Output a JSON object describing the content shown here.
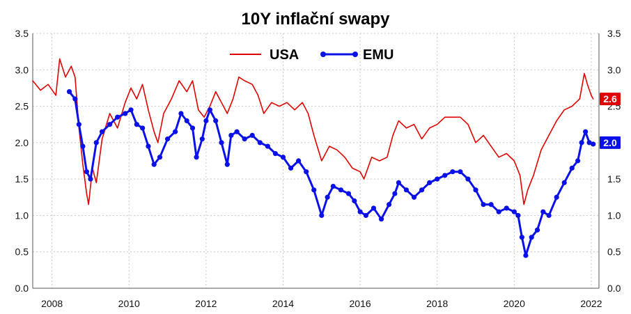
{
  "chart_data": {
    "type": "line",
    "title": "10Y inflační swapy",
    "xlabel": "",
    "ylabel": "",
    "ylim": [
      0,
      3.5
    ],
    "yticks": [
      "0.0",
      "0.5",
      "1.0",
      "1.5",
      "2.0",
      "2.5",
      "3.0",
      "3.5"
    ],
    "xlim": [
      2007.5,
      2022.2
    ],
    "xticks": [
      "2008",
      "2010",
      "2012",
      "2014",
      "2016",
      "2018",
      "2020",
      "2022"
    ],
    "grid": true,
    "legend": "top-center",
    "series": [
      {
        "name": "USA",
        "color": "#e00000",
        "last_value_label": "2.6",
        "points": [
          [
            2007.5,
            2.85
          ],
          [
            2007.7,
            2.72
          ],
          [
            2007.9,
            2.8
          ],
          [
            2008.1,
            2.65
          ],
          [
            2008.2,
            3.15
          ],
          [
            2008.35,
            2.9
          ],
          [
            2008.5,
            3.05
          ],
          [
            2008.6,
            2.9
          ],
          [
            2008.7,
            2.2
          ],
          [
            2008.8,
            1.7
          ],
          [
            2008.9,
            1.3
          ],
          [
            2008.95,
            1.15
          ],
          [
            2009.05,
            1.65
          ],
          [
            2009.15,
            1.45
          ],
          [
            2009.3,
            2.05
          ],
          [
            2009.5,
            2.4
          ],
          [
            2009.7,
            2.2
          ],
          [
            2009.9,
            2.55
          ],
          [
            2010.05,
            2.75
          ],
          [
            2010.2,
            2.6
          ],
          [
            2010.35,
            2.8
          ],
          [
            2010.5,
            2.45
          ],
          [
            2010.65,
            2.15
          ],
          [
            2010.75,
            2.0
          ],
          [
            2010.9,
            2.4
          ],
          [
            2011.1,
            2.6
          ],
          [
            2011.3,
            2.85
          ],
          [
            2011.5,
            2.7
          ],
          [
            2011.65,
            2.85
          ],
          [
            2011.8,
            2.45
          ],
          [
            2011.95,
            2.35
          ],
          [
            2012.1,
            2.5
          ],
          [
            2012.25,
            2.7
          ],
          [
            2012.4,
            2.55
          ],
          [
            2012.55,
            2.4
          ],
          [
            2012.7,
            2.6
          ],
          [
            2012.85,
            2.9
          ],
          [
            2013.0,
            2.85
          ],
          [
            2013.2,
            2.8
          ],
          [
            2013.35,
            2.65
          ],
          [
            2013.5,
            2.4
          ],
          [
            2013.7,
            2.55
          ],
          [
            2013.9,
            2.5
          ],
          [
            2014.1,
            2.55
          ],
          [
            2014.3,
            2.45
          ],
          [
            2014.5,
            2.55
          ],
          [
            2014.65,
            2.4
          ],
          [
            2014.8,
            2.1
          ],
          [
            2015.0,
            1.75
          ],
          [
            2015.2,
            1.95
          ],
          [
            2015.4,
            1.9
          ],
          [
            2015.6,
            1.8
          ],
          [
            2015.8,
            1.65
          ],
          [
            2016.0,
            1.6
          ],
          [
            2016.1,
            1.5
          ],
          [
            2016.3,
            1.8
          ],
          [
            2016.5,
            1.75
          ],
          [
            2016.7,
            1.8
          ],
          [
            2016.85,
            2.1
          ],
          [
            2017.0,
            2.3
          ],
          [
            2017.2,
            2.2
          ],
          [
            2017.4,
            2.25
          ],
          [
            2017.6,
            2.05
          ],
          [
            2017.8,
            2.2
          ],
          [
            2018.0,
            2.25
          ],
          [
            2018.2,
            2.35
          ],
          [
            2018.4,
            2.35
          ],
          [
            2018.6,
            2.35
          ],
          [
            2018.8,
            2.25
          ],
          [
            2019.0,
            2.0
          ],
          [
            2019.2,
            2.1
          ],
          [
            2019.4,
            1.95
          ],
          [
            2019.6,
            1.8
          ],
          [
            2019.8,
            1.85
          ],
          [
            2020.0,
            1.75
          ],
          [
            2020.15,
            1.55
          ],
          [
            2020.25,
            1.15
          ],
          [
            2020.35,
            1.35
          ],
          [
            2020.5,
            1.55
          ],
          [
            2020.7,
            1.9
          ],
          [
            2020.9,
            2.1
          ],
          [
            2021.1,
            2.3
          ],
          [
            2021.3,
            2.45
          ],
          [
            2021.5,
            2.5
          ],
          [
            2021.7,
            2.6
          ],
          [
            2021.82,
            2.95
          ],
          [
            2021.9,
            2.8
          ],
          [
            2022.0,
            2.65
          ],
          [
            2022.05,
            2.6
          ]
        ]
      },
      {
        "name": "EMU",
        "color": "#0a10e8",
        "last_value_label": "2.0",
        "points": [
          [
            2008.45,
            2.7
          ],
          [
            2008.6,
            2.6
          ],
          [
            2008.7,
            2.25
          ],
          [
            2008.8,
            1.95
          ],
          [
            2008.9,
            1.6
          ],
          [
            2009.0,
            1.5
          ],
          [
            2009.15,
            2.0
          ],
          [
            2009.3,
            2.15
          ],
          [
            2009.5,
            2.25
          ],
          [
            2009.7,
            2.35
          ],
          [
            2009.9,
            2.4
          ],
          [
            2010.05,
            2.45
          ],
          [
            2010.2,
            2.25
          ],
          [
            2010.35,
            2.2
          ],
          [
            2010.5,
            1.95
          ],
          [
            2010.65,
            1.7
          ],
          [
            2010.8,
            1.8
          ],
          [
            2011.0,
            2.05
          ],
          [
            2011.2,
            2.15
          ],
          [
            2011.35,
            2.4
          ],
          [
            2011.5,
            2.3
          ],
          [
            2011.65,
            2.2
          ],
          [
            2011.75,
            1.8
          ],
          [
            2011.9,
            2.05
          ],
          [
            2012.0,
            2.3
          ],
          [
            2012.1,
            2.45
          ],
          [
            2012.25,
            2.3
          ],
          [
            2012.4,
            2.0
          ],
          [
            2012.55,
            1.7
          ],
          [
            2012.65,
            2.1
          ],
          [
            2012.8,
            2.15
          ],
          [
            2013.0,
            2.05
          ],
          [
            2013.2,
            2.1
          ],
          [
            2013.4,
            2.0
          ],
          [
            2013.6,
            1.95
          ],
          [
            2013.8,
            1.85
          ],
          [
            2014.0,
            1.8
          ],
          [
            2014.2,
            1.65
          ],
          [
            2014.4,
            1.75
          ],
          [
            2014.6,
            1.6
          ],
          [
            2014.8,
            1.35
          ],
          [
            2015.0,
            1.0
          ],
          [
            2015.15,
            1.25
          ],
          [
            2015.3,
            1.4
          ],
          [
            2015.5,
            1.35
          ],
          [
            2015.7,
            1.3
          ],
          [
            2015.85,
            1.2
          ],
          [
            2016.0,
            1.05
          ],
          [
            2016.15,
            1.0
          ],
          [
            2016.35,
            1.1
          ],
          [
            2016.55,
            0.95
          ],
          [
            2016.75,
            1.15
          ],
          [
            2016.9,
            1.3
          ],
          [
            2017.0,
            1.45
          ],
          [
            2017.2,
            1.35
          ],
          [
            2017.4,
            1.25
          ],
          [
            2017.6,
            1.35
          ],
          [
            2017.8,
            1.45
          ],
          [
            2018.0,
            1.5
          ],
          [
            2018.2,
            1.55
          ],
          [
            2018.4,
            1.6
          ],
          [
            2018.6,
            1.6
          ],
          [
            2018.8,
            1.5
          ],
          [
            2019.0,
            1.35
          ],
          [
            2019.2,
            1.15
          ],
          [
            2019.4,
            1.15
          ],
          [
            2019.6,
            1.05
          ],
          [
            2019.8,
            1.1
          ],
          [
            2020.0,
            1.05
          ],
          [
            2020.1,
            1.0
          ],
          [
            2020.2,
            0.7
          ],
          [
            2020.3,
            0.45
          ],
          [
            2020.45,
            0.7
          ],
          [
            2020.6,
            0.8
          ],
          [
            2020.75,
            1.05
          ],
          [
            2020.9,
            1.0
          ],
          [
            2021.1,
            1.25
          ],
          [
            2021.3,
            1.45
          ],
          [
            2021.5,
            1.65
          ],
          [
            2021.65,
            1.75
          ],
          [
            2021.75,
            2.0
          ],
          [
            2021.85,
            2.15
          ],
          [
            2021.95,
            2.0
          ],
          [
            2022.05,
            1.98
          ]
        ]
      }
    ]
  }
}
